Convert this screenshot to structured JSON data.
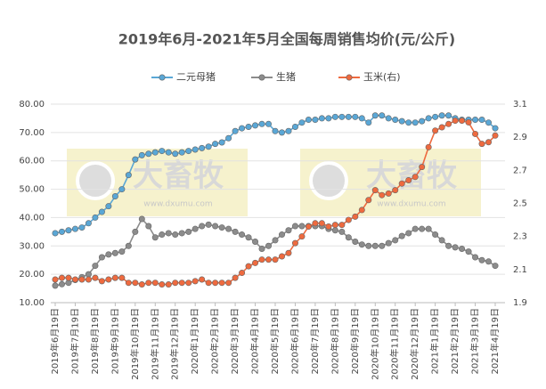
{
  "chart_data": {
    "type": "line",
    "title": "2019年6月-2021年5月全国每周销售均价(元/公斤)",
    "watermark": [
      "大畜牧",
      "www.dxumu.com"
    ],
    "categories": [
      "2019年6月19日",
      null,
      null,
      "2019年7月19日",
      null,
      null,
      "2019年8月19日",
      null,
      null,
      "2019年9月19日",
      null,
      null,
      "2019年10月19日",
      null,
      null,
      "2019年11月19日",
      null,
      null,
      "2019年12月19日",
      null,
      null,
      "2020年1月19日",
      null,
      null,
      "2020年2月19日",
      null,
      null,
      "2020年3月19日",
      null,
      null,
      "2020年4月19日",
      null,
      null,
      "2020年5月19日",
      null,
      null,
      "2020年6月19日",
      null,
      null,
      "2020年7月19日",
      null,
      null,
      "2020年8月19日",
      null,
      null,
      "2020年9月19日",
      null,
      null,
      "2020年10月19日",
      null,
      null,
      "2020年11月19日",
      null,
      null,
      "2020年12月19日",
      null,
      null,
      "2021年1月19日",
      null,
      null,
      "2021年2月19日",
      null,
      null,
      "2021年3月19日",
      null,
      null,
      "2021年4月19日"
    ],
    "series": [
      {
        "name": "二元母猪",
        "color": "#5aa7d6",
        "values": [
          34.5,
          35,
          35.5,
          36,
          36.5,
          38,
          40,
          42,
          44,
          47.5,
          50,
          55,
          60.5,
          62,
          62.5,
          63,
          63.5,
          63,
          62.5,
          63,
          63.5,
          64,
          64.5,
          65,
          66,
          66.5,
          68,
          70.5,
          71.5,
          72,
          72.5,
          73,
          73,
          70.5,
          70,
          70.5,
          72,
          73.5,
          74.5,
          74.5,
          75,
          75,
          75.5,
          75.5,
          75.5,
          75.5,
          75,
          73.5,
          76,
          76,
          75,
          74.5,
          74,
          73.5,
          73.5,
          74,
          75,
          75.5,
          76,
          76,
          75,
          74.5,
          74.5,
          74.5,
          74.5,
          73.5,
          71.5
        ]
      },
      {
        "name": "生猪",
        "color": "#8c8c8c",
        "values": [
          16,
          16.5,
          17,
          18,
          19,
          20,
          23,
          26,
          27,
          27.5,
          28,
          30,
          35,
          39.5,
          37,
          33,
          34,
          34.5,
          34,
          34.5,
          35,
          36,
          37,
          37.5,
          37,
          36.5,
          36,
          35,
          34,
          33,
          31.5,
          29,
          30,
          32,
          34,
          35.5,
          37,
          37,
          37,
          37,
          37,
          36,
          35.5,
          35,
          33,
          31.5,
          30.5,
          30,
          30,
          30,
          31,
          32,
          33.5,
          34.5,
          36,
          36,
          36,
          34,
          32,
          30,
          29.5,
          29,
          28,
          26,
          25,
          24.5,
          23
        ]
      },
      {
        "name": "玉米(右)",
        "color": "#ee6a3f",
        "axis": "y2",
        "values": [
          2.04,
          2.05,
          2.05,
          2.04,
          2.04,
          2.04,
          2.05,
          2.03,
          2.04,
          2.05,
          2.05,
          2.02,
          2.02,
          2.01,
          2.02,
          2.02,
          2.01,
          2.01,
          2.02,
          2.02,
          2.02,
          2.03,
          2.04,
          2.02,
          2.02,
          2.02,
          2.02,
          2.05,
          2.08,
          2.12,
          2.14,
          2.16,
          2.16,
          2.16,
          2.18,
          2.2,
          2.26,
          2.3,
          2.36,
          2.38,
          2.38,
          2.36,
          2.37,
          2.37,
          2.4,
          2.42,
          2.46,
          2.52,
          2.58,
          2.55,
          2.56,
          2.58,
          2.62,
          2.64,
          2.66,
          2.72,
          2.84,
          2.94,
          2.96,
          2.98,
          3.0,
          3.0,
          2.99,
          2.92,
          2.86,
          2.87,
          2.91
        ]
      }
    ],
    "ylim": [
      10,
      80
    ],
    "yticks": [
      {
        "value": 10,
        "label": "10.00"
      },
      {
        "value": 20,
        "label": "20.00"
      },
      {
        "value": 30,
        "label": "30.00"
      },
      {
        "value": 40,
        "label": "40.00"
      },
      {
        "value": 50,
        "label": "50.00"
      },
      {
        "value": 60,
        "label": "60.00"
      },
      {
        "value": 70,
        "label": "70.00"
      },
      {
        "value": 80,
        "label": "80.00"
      }
    ],
    "y2lim": [
      1.9,
      3.1
    ],
    "y2ticks": [
      1.9,
      2.1,
      2.3,
      2.5,
      2.7,
      2.9,
      3.1
    ],
    "grid": true,
    "legend": "top"
  }
}
